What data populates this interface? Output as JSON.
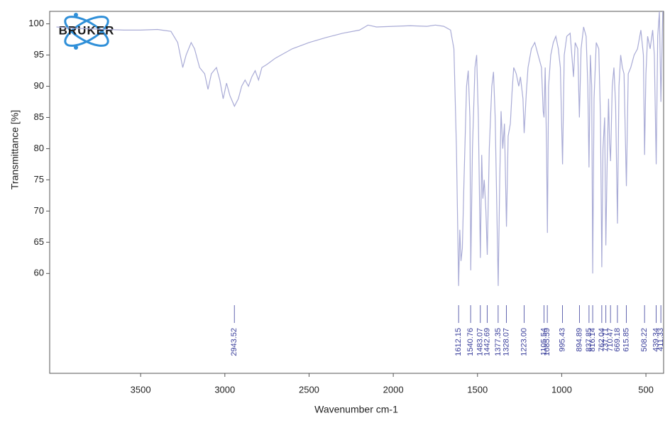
{
  "chart_data": {
    "type": "line",
    "logo": "BRUKER",
    "x_label": "Wavenumber cm-1",
    "y_label": "Transmittance [%]",
    "color": "#a9abd6",
    "peak_color": "#3a3f9b",
    "xlim": [
      4040,
      395
    ],
    "ylim": [
      44,
      102
    ],
    "xticks": [
      3500,
      3000,
      2500,
      2000,
      1500,
      1000,
      500
    ],
    "yticks": [
      60,
      65,
      70,
      75,
      80,
      85,
      90,
      95,
      100
    ],
    "x": [
      4000,
      3900,
      3800,
      3700,
      3600,
      3500,
      3400,
      3320,
      3280,
      3250,
      3230,
      3200,
      3180,
      3150,
      3120,
      3100,
      3080,
      3050,
      3030,
      3010,
      2990,
      2970,
      2943,
      2920,
      2900,
      2880,
      2860,
      2840,
      2820,
      2800,
      2780,
      2750,
      2700,
      2600,
      2500,
      2400,
      2300,
      2200,
      2150,
      2100,
      2000,
      1900,
      1800,
      1750,
      1700,
      1660,
      1640,
      1625,
      1612,
      1605,
      1598,
      1590,
      1580,
      1565,
      1555,
      1545,
      1540,
      1530,
      1515,
      1505,
      1495,
      1483,
      1475,
      1468,
      1460,
      1450,
      1442,
      1430,
      1415,
      1405,
      1395,
      1385,
      1377,
      1368,
      1360,
      1350,
      1340,
      1328,
      1318,
      1305,
      1295,
      1285,
      1270,
      1255,
      1245,
      1230,
      1223,
      1210,
      1200,
      1180,
      1160,
      1140,
      1120,
      1110,
      1105,
      1098,
      1090,
      1085,
      1078,
      1065,
      1050,
      1035,
      1020,
      1008,
      995,
      985,
      970,
      950,
      930,
      920,
      905,
      895,
      885,
      870,
      855,
      845,
      838,
      830,
      822,
      816,
      808,
      795,
      780,
      770,
      762,
      755,
      745,
      738,
      730,
      722,
      716,
      710,
      700,
      690,
      680,
      669,
      660,
      650,
      640,
      630,
      616,
      605,
      590,
      570,
      550,
      530,
      515,
      508,
      500,
      490,
      475,
      460,
      450,
      439,
      430,
      420,
      411,
      400
    ],
    "values": [
      99.5,
      99.3,
      99.2,
      99.1,
      99.0,
      99.0,
      99.1,
      98.8,
      97,
      93,
      95,
      97,
      96,
      93,
      92,
      89.5,
      92,
      93,
      91,
      88,
      90.5,
      88.5,
      86.8,
      88,
      90,
      91,
      90,
      91.5,
      92.5,
      91,
      93,
      93.5,
      94.5,
      96,
      97,
      97.8,
      98.5,
      99,
      99.8,
      99.5,
      99.6,
      99.7,
      99.6,
      99.8,
      99.6,
      99,
      96,
      80,
      58,
      67,
      62,
      64,
      75,
      90,
      92.5,
      85,
      60.5,
      80,
      93,
      95,
      85,
      62.5,
      79,
      72,
      75,
      70,
      63,
      80,
      90,
      92.3,
      85,
      70,
      58,
      75,
      86,
      80,
      84,
      67.5,
      82,
      84,
      89,
      93,
      92,
      90,
      91.5,
      88,
      82.5,
      89,
      93,
      96,
      97,
      95,
      93,
      86,
      85,
      93,
      80,
      66.5,
      90,
      95,
      97,
      98,
      96,
      93,
      77.5,
      95,
      98,
      98.5,
      91.5,
      97,
      96,
      85,
      96,
      99.5,
      98,
      90,
      77,
      95,
      90,
      60,
      88,
      97,
      96,
      85,
      61,
      80,
      85,
      64.5,
      78,
      88,
      81,
      78,
      90,
      93,
      87,
      68,
      90,
      95,
      93,
      92,
      74,
      92,
      93,
      95,
      96,
      99,
      95,
      79,
      92,
      98,
      96,
      99,
      95,
      77.5,
      98,
      102,
      87.5,
      102
    ],
    "peaks": [
      2943.52,
      1612.15,
      1540.76,
      1483.07,
      1442.69,
      1377.35,
      1328.07,
      {
        "value": 1223,
        "label": "1223.00"
      },
      1105.54,
      1085.59,
      995.43,
      894.89,
      837.85,
      816.14,
      762.04,
      737.71,
      710.47,
      669.18,
      615.85,
      508.22,
      439.34,
      411.33
    ]
  }
}
